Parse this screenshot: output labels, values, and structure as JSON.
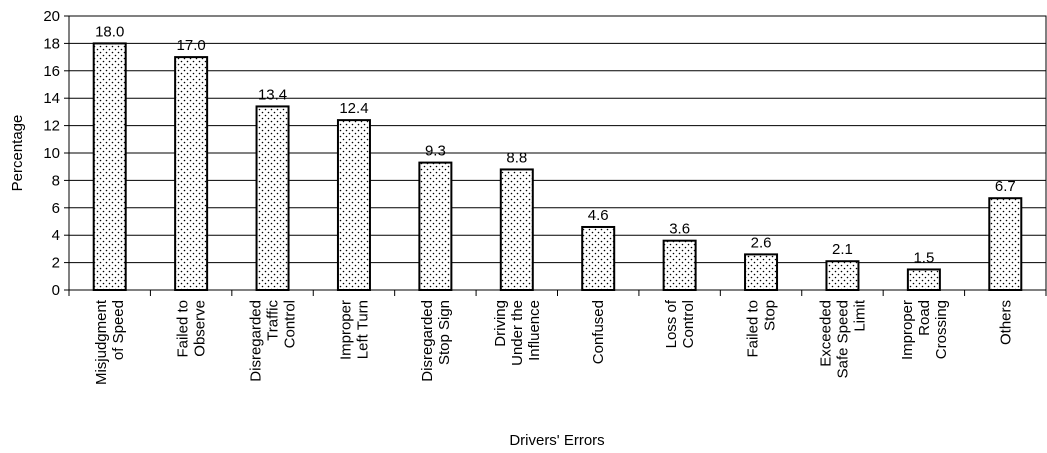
{
  "chart_data": {
    "type": "bar",
    "categories": [
      [
        "Misjudgment",
        "of Speed"
      ],
      [
        "Failed to",
        "Observe"
      ],
      [
        "Disregarded",
        "Traffic",
        "Control"
      ],
      [
        "Improper",
        "Left Turn"
      ],
      [
        "Disregarded",
        "Stop Sign"
      ],
      [
        "Driving",
        "Under the",
        "Influence"
      ],
      [
        "Confused"
      ],
      [
        "Loss of",
        "Control"
      ],
      [
        "Failed to",
        "Stop"
      ],
      [
        "Exceeded",
        "Safe Speed",
        "Limit"
      ],
      [
        "Improper",
        "Road",
        "Crossing"
      ],
      [
        "Others"
      ]
    ],
    "values": [
      18.0,
      17.0,
      13.4,
      12.4,
      9.3,
      8.8,
      4.6,
      3.6,
      2.6,
      2.1,
      1.5,
      6.7
    ],
    "data_labels": [
      "18.0",
      "17.0",
      "13.4",
      "12.4",
      "9.3",
      "8.8",
      "4.6",
      "3.6",
      "2.6",
      "2.1",
      "1.5",
      "6.7"
    ],
    "xlabel": "Drivers' Errors",
    "ylabel": "Percentage",
    "ylim": [
      0,
      20
    ],
    "yticks": [
      0,
      2,
      4,
      6,
      8,
      10,
      12,
      14,
      16,
      18,
      20
    ],
    "grid": true,
    "bar_fill": "dotted-pattern",
    "colors": {
      "bar_stroke": "#000000",
      "bar_dots": "#000000",
      "bar_bg": "#ffffff",
      "grid": "#000000"
    }
  }
}
